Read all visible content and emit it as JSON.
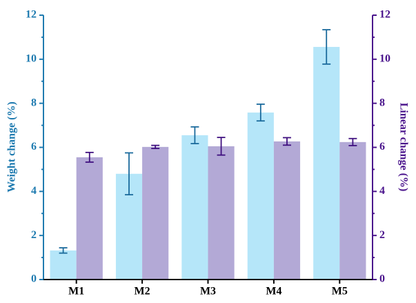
{
  "chart_data": {
    "type": "bar",
    "categories": [
      "M1",
      "M2",
      "M3",
      "M4",
      "M5"
    ],
    "ylabel": "Weight change (%)",
    "y2label": "Linear change (%)",
    "ylim": [
      0,
      12
    ],
    "yticks": [
      0,
      2,
      4,
      6,
      8,
      10,
      12
    ],
    "y2lim": [
      0,
      12
    ],
    "y2ticks": [
      0,
      2,
      4,
      6,
      8,
      10,
      12
    ],
    "ycolor": "#1f7bb0",
    "y2color": "#4a148c",
    "series": [
      {
        "color": "#b5e6f9",
        "error_color": "#1a6a9c",
        "values": [
          1.32,
          4.8,
          6.55,
          7.58,
          10.56
        ],
        "errors": [
          0.12,
          0.95,
          0.38,
          0.38,
          0.78
        ]
      },
      {
        "color": "#b3a9d6",
        "error_color": "#3f0f7f",
        "values": [
          5.55,
          6.02,
          6.05,
          6.27,
          6.24
        ],
        "errors": [
          0.22,
          0.07,
          0.4,
          0.17,
          0.16
        ],
        "axis": "y2"
      }
    ]
  }
}
